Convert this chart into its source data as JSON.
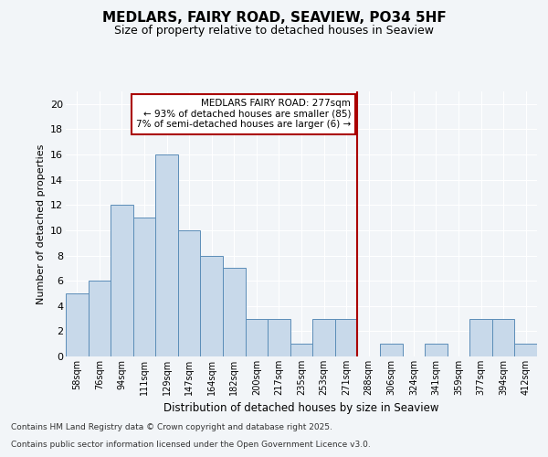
{
  "title": "MEDLARS, FAIRY ROAD, SEAVIEW, PO34 5HF",
  "subtitle": "Size of property relative to detached houses in Seaview",
  "xlabel": "Distribution of detached houses by size in Seaview",
  "ylabel": "Number of detached properties",
  "footnote1": "Contains HM Land Registry data © Crown copyright and database right 2025.",
  "footnote2": "Contains public sector information licensed under the Open Government Licence v3.0.",
  "bins": [
    "58sqm",
    "76sqm",
    "94sqm",
    "111sqm",
    "129sqm",
    "147sqm",
    "164sqm",
    "182sqm",
    "200sqm",
    "217sqm",
    "235sqm",
    "253sqm",
    "271sqm",
    "288sqm",
    "306sqm",
    "324sqm",
    "341sqm",
    "359sqm",
    "377sqm",
    "394sqm",
    "412sqm"
  ],
  "values": [
    5,
    6,
    12,
    11,
    16,
    10,
    8,
    7,
    3,
    3,
    1,
    3,
    3,
    0,
    1,
    0,
    1,
    0,
    3,
    3,
    1
  ],
  "bar_color": "#c8d9ea",
  "bar_edge_color": "#5b8db8",
  "vline_x_idx": 13,
  "vline_color": "#aa0000",
  "annotation_text": "MEDLARS FAIRY ROAD: 277sqm\n← 93% of detached houses are smaller (85)\n7% of semi-detached houses are larger (6) →",
  "ylim": [
    0,
    21
  ],
  "background_color": "#f2f5f8",
  "plot_bg_color": "#f2f5f8",
  "grid_color": "#ffffff",
  "yticks": [
    0,
    2,
    4,
    6,
    8,
    10,
    12,
    14,
    16,
    18,
    20
  ]
}
